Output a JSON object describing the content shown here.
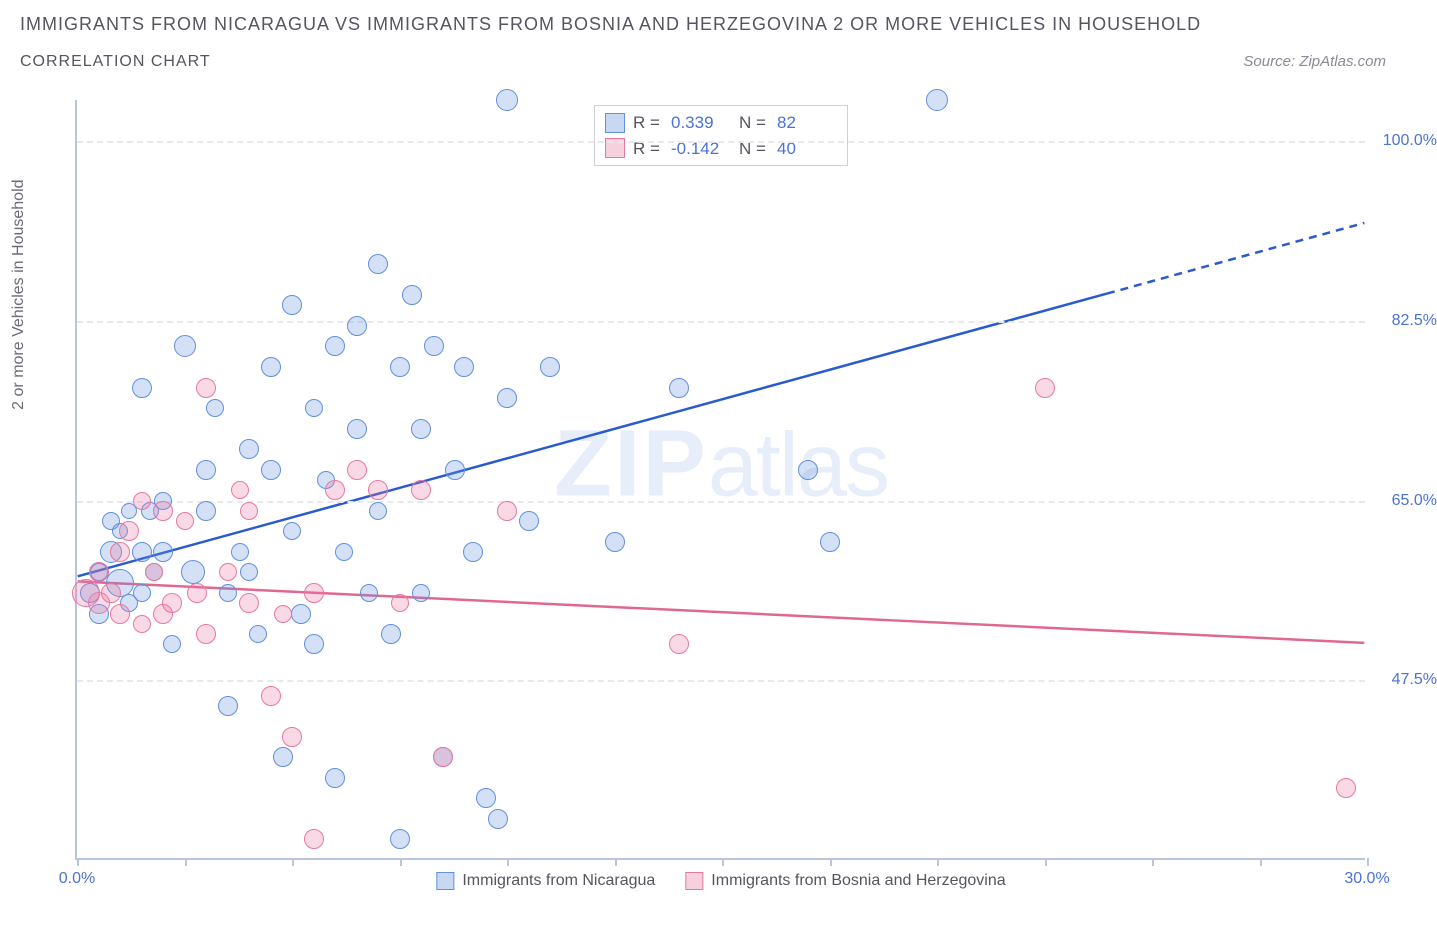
{
  "title": "Immigrants from Nicaragua vs Immigrants from Bosnia and Herzegovina 2 or more Vehicles in Household",
  "subtitle": "Correlation Chart",
  "source_label": "Source:",
  "source_name": "ZipAtlas.com",
  "watermark": {
    "bold": "ZIP",
    "light": "atlas"
  },
  "chart": {
    "type": "scatter",
    "x_axis": {
      "min": 0.0,
      "max": 30.0,
      "label": null,
      "ticks": [
        0.0,
        30.0
      ],
      "tick_labels": [
        "0.0%",
        "30.0%"
      ],
      "minor_tick_interval": 2.5
    },
    "y_axis": {
      "min": 30.0,
      "max": 104.0,
      "label": "2 or more Vehicles in Household",
      "gridlines": [
        47.5,
        65.0,
        82.5,
        100.0
      ],
      "tick_labels": [
        "47.5%",
        "65.0%",
        "82.5%",
        "100.0%"
      ]
    },
    "background_color": "#ffffff",
    "grid_color": "#e8e8ee",
    "axis_color": "#b8c4e0",
    "tick_label_color": "#4a72d8",
    "series": [
      {
        "name": "Immigrants from Nicaragua",
        "color_fill": "rgba(97,144,222,0.28)",
        "color_stroke": "#6190de",
        "trend": {
          "color": "#2a5ad0",
          "x1": 0.0,
          "y1": 57.5,
          "x2": 30.0,
          "y2": 92.0,
          "solid_until_x": 24.0
        },
        "stats": {
          "R": "0.339",
          "N": "82"
        },
        "points": [
          {
            "x": 0.3,
            "y": 56,
            "r": 10
          },
          {
            "x": 0.5,
            "y": 58,
            "r": 9
          },
          {
            "x": 0.5,
            "y": 54,
            "r": 10
          },
          {
            "x": 0.8,
            "y": 60,
            "r": 11
          },
          {
            "x": 0.8,
            "y": 63,
            "r": 9
          },
          {
            "x": 1.0,
            "y": 62,
            "r": 8
          },
          {
            "x": 1.0,
            "y": 57,
            "r": 14
          },
          {
            "x": 1.2,
            "y": 64,
            "r": 8
          },
          {
            "x": 1.2,
            "y": 55,
            "r": 9
          },
          {
            "x": 1.5,
            "y": 56,
            "r": 9
          },
          {
            "x": 1.5,
            "y": 60,
            "r": 10
          },
          {
            "x": 1.5,
            "y": 76,
            "r": 10
          },
          {
            "x": 1.7,
            "y": 64,
            "r": 9
          },
          {
            "x": 1.8,
            "y": 58,
            "r": 9
          },
          {
            "x": 2.0,
            "y": 60,
            "r": 10
          },
          {
            "x": 2.0,
            "y": 65,
            "r": 9
          },
          {
            "x": 2.2,
            "y": 51,
            "r": 9
          },
          {
            "x": 2.5,
            "y": 80,
            "r": 11
          },
          {
            "x": 2.7,
            "y": 58,
            "r": 12
          },
          {
            "x": 3.0,
            "y": 64,
            "r": 10
          },
          {
            "x": 3.0,
            "y": 68,
            "r": 10
          },
          {
            "x": 3.2,
            "y": 74,
            "r": 9
          },
          {
            "x": 3.5,
            "y": 56,
            "r": 9
          },
          {
            "x": 3.5,
            "y": 45,
            "r": 10
          },
          {
            "x": 3.8,
            "y": 60,
            "r": 9
          },
          {
            "x": 4.0,
            "y": 70,
            "r": 10
          },
          {
            "x": 4.0,
            "y": 58,
            "r": 9
          },
          {
            "x": 4.2,
            "y": 52,
            "r": 9
          },
          {
            "x": 4.5,
            "y": 78,
            "r": 10
          },
          {
            "x": 4.5,
            "y": 68,
            "r": 10
          },
          {
            "x": 4.8,
            "y": 40,
            "r": 10
          },
          {
            "x": 5.0,
            "y": 84,
            "r": 10
          },
          {
            "x": 5.0,
            "y": 62,
            "r": 9
          },
          {
            "x": 5.2,
            "y": 54,
            "r": 10
          },
          {
            "x": 5.5,
            "y": 51,
            "r": 10
          },
          {
            "x": 5.5,
            "y": 74,
            "r": 9
          },
          {
            "x": 5.8,
            "y": 67,
            "r": 9
          },
          {
            "x": 6.0,
            "y": 80,
            "r": 10
          },
          {
            "x": 6.0,
            "y": 38,
            "r": 10
          },
          {
            "x": 6.2,
            "y": 60,
            "r": 9
          },
          {
            "x": 6.5,
            "y": 82,
            "r": 10
          },
          {
            "x": 6.5,
            "y": 72,
            "r": 10
          },
          {
            "x": 6.8,
            "y": 56,
            "r": 9
          },
          {
            "x": 7.0,
            "y": 88,
            "r": 10
          },
          {
            "x": 7.0,
            "y": 64,
            "r": 9
          },
          {
            "x": 7.3,
            "y": 52,
            "r": 10
          },
          {
            "x": 7.5,
            "y": 78,
            "r": 10
          },
          {
            "x": 7.5,
            "y": 32,
            "r": 10
          },
          {
            "x": 7.8,
            "y": 85,
            "r": 10
          },
          {
            "x": 8.0,
            "y": 72,
            "r": 10
          },
          {
            "x": 8.0,
            "y": 56,
            "r": 9
          },
          {
            "x": 8.3,
            "y": 80,
            "r": 10
          },
          {
            "x": 8.5,
            "y": 40,
            "r": 10
          },
          {
            "x": 8.8,
            "y": 68,
            "r": 10
          },
          {
            "x": 9.0,
            "y": 78,
            "r": 10
          },
          {
            "x": 9.2,
            "y": 60,
            "r": 10
          },
          {
            "x": 9.5,
            "y": 36,
            "r": 10
          },
          {
            "x": 9.8,
            "y": 34,
            "r": 10
          },
          {
            "x": 10.0,
            "y": 104,
            "r": 11
          },
          {
            "x": 10.0,
            "y": 75,
            "r": 10
          },
          {
            "x": 10.5,
            "y": 63,
            "r": 10
          },
          {
            "x": 11.0,
            "y": 78,
            "r": 10
          },
          {
            "x": 12.5,
            "y": 61,
            "r": 10
          },
          {
            "x": 14.0,
            "y": 76,
            "r": 10
          },
          {
            "x": 17.0,
            "y": 68,
            "r": 10
          },
          {
            "x": 17.5,
            "y": 61,
            "r": 10
          },
          {
            "x": 20.0,
            "y": 104,
            "r": 11
          }
        ]
      },
      {
        "name": "Immigrants from Bosnia and Herzegovina",
        "color_fill": "rgba(232,120,160,0.28)",
        "color_stroke": "#e878a0",
        "trend": {
          "color": "#e06890",
          "x1": 0.0,
          "y1": 57.0,
          "x2": 30.0,
          "y2": 51.0,
          "solid_until_x": 30.0
        },
        "stats": {
          "R": "-0.142",
          "N": "40"
        },
        "points": [
          {
            "x": 0.2,
            "y": 56,
            "r": 14
          },
          {
            "x": 0.5,
            "y": 55,
            "r": 11
          },
          {
            "x": 0.5,
            "y": 58,
            "r": 10
          },
          {
            "x": 0.8,
            "y": 56,
            "r": 10
          },
          {
            "x": 1.0,
            "y": 54,
            "r": 10
          },
          {
            "x": 1.0,
            "y": 60,
            "r": 10
          },
          {
            "x": 1.2,
            "y": 62,
            "r": 10
          },
          {
            "x": 1.5,
            "y": 65,
            "r": 9
          },
          {
            "x": 1.5,
            "y": 53,
            "r": 9
          },
          {
            "x": 1.8,
            "y": 58,
            "r": 9
          },
          {
            "x": 2.0,
            "y": 64,
            "r": 10
          },
          {
            "x": 2.0,
            "y": 54,
            "r": 10
          },
          {
            "x": 2.2,
            "y": 55,
            "r": 10
          },
          {
            "x": 2.5,
            "y": 63,
            "r": 9
          },
          {
            "x": 2.8,
            "y": 56,
            "r": 10
          },
          {
            "x": 3.0,
            "y": 76,
            "r": 10
          },
          {
            "x": 3.0,
            "y": 52,
            "r": 10
          },
          {
            "x": 3.5,
            "y": 58,
            "r": 9
          },
          {
            "x": 3.8,
            "y": 66,
            "r": 9
          },
          {
            "x": 4.0,
            "y": 55,
            "r": 10
          },
          {
            "x": 4.0,
            "y": 64,
            "r": 9
          },
          {
            "x": 4.5,
            "y": 46,
            "r": 10
          },
          {
            "x": 4.8,
            "y": 54,
            "r": 9
          },
          {
            "x": 5.0,
            "y": 42,
            "r": 10
          },
          {
            "x": 5.5,
            "y": 56,
            "r": 10
          },
          {
            "x": 5.5,
            "y": 32,
            "r": 10
          },
          {
            "x": 6.0,
            "y": 66,
            "r": 10
          },
          {
            "x": 6.5,
            "y": 68,
            "r": 10
          },
          {
            "x": 7.0,
            "y": 66,
            "r": 10
          },
          {
            "x": 7.5,
            "y": 55,
            "r": 9
          },
          {
            "x": 8.0,
            "y": 66,
            "r": 10
          },
          {
            "x": 8.5,
            "y": 40,
            "r": 10
          },
          {
            "x": 10.0,
            "y": 64,
            "r": 10
          },
          {
            "x": 14.0,
            "y": 51,
            "r": 10
          },
          {
            "x": 22.5,
            "y": 76,
            "r": 10
          },
          {
            "x": 29.5,
            "y": 37,
            "r": 10
          }
        ]
      }
    ]
  },
  "legend_top_labels": {
    "R": "R =",
    "N": "N ="
  },
  "legend_bottom": [
    {
      "swatch": "blue",
      "label": "Immigrants from Nicaragua"
    },
    {
      "swatch": "pink",
      "label": "Immigrants from Bosnia and Herzegovina"
    }
  ]
}
